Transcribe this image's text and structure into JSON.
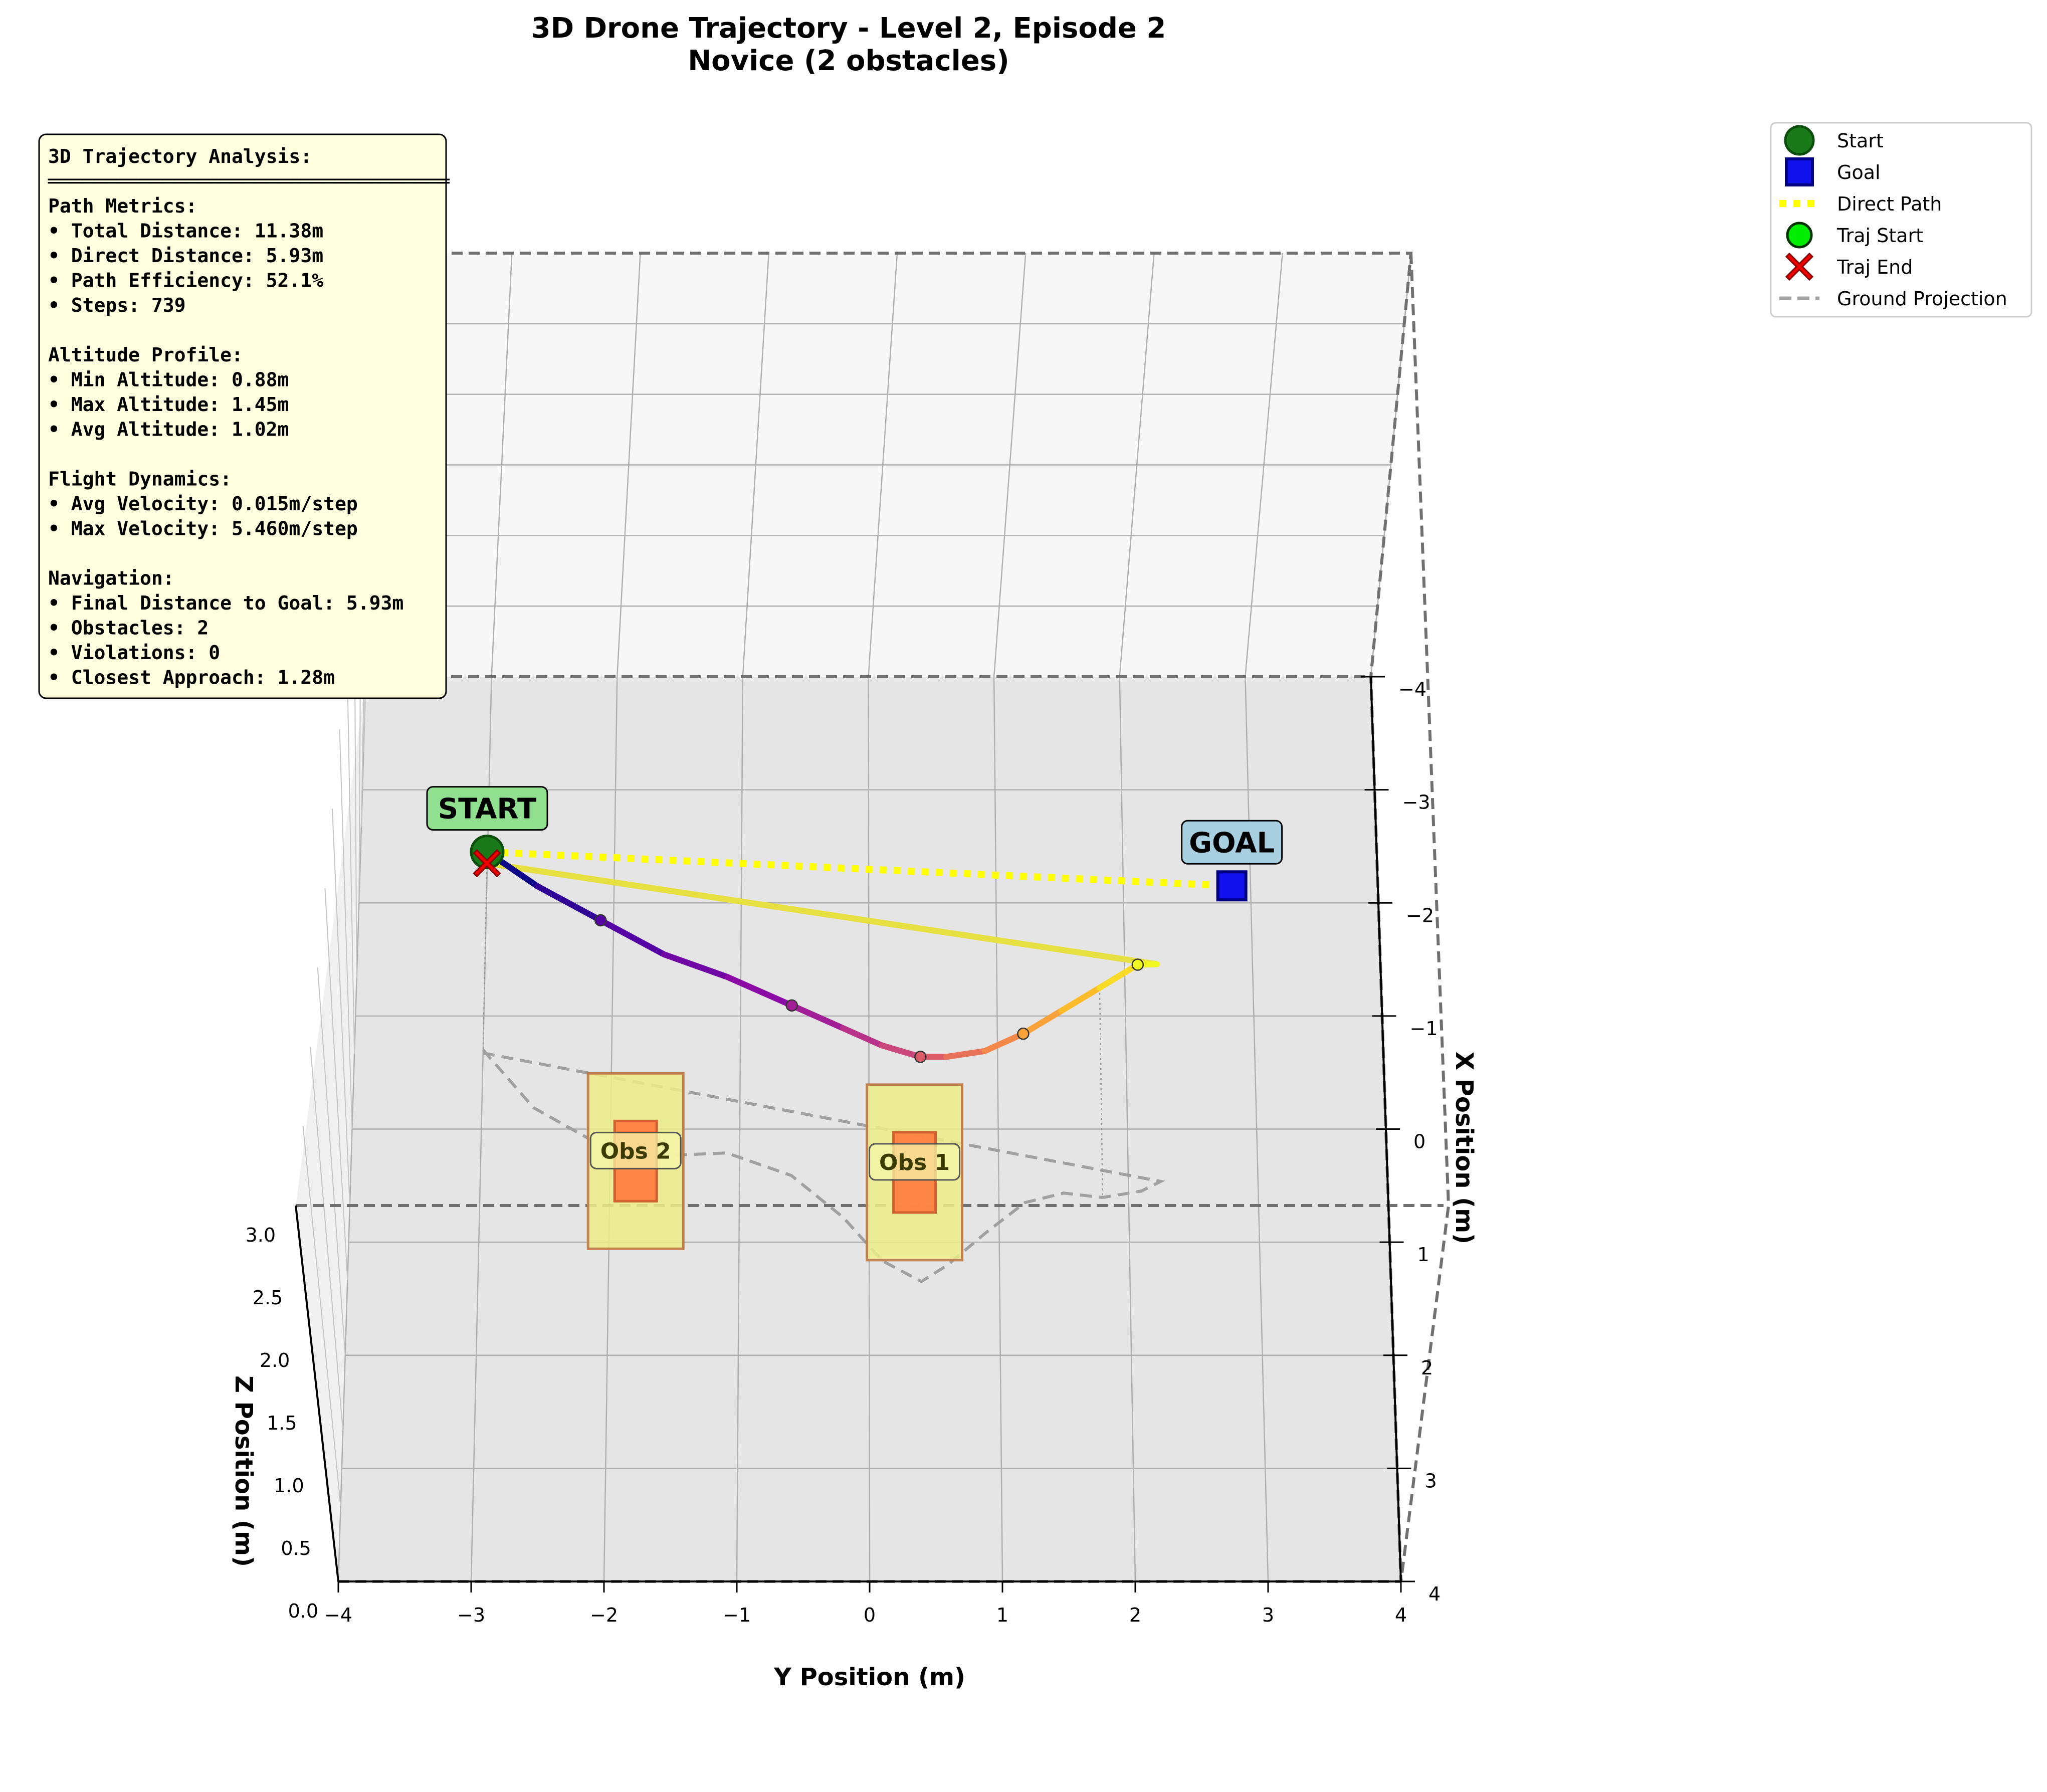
{
  "chart_data": {
    "type": "line",
    "projection": "3d",
    "title": "3D Drone Trajectory - Level 2, Episode 2",
    "subtitle": "Novice (2 obstacles)",
    "xlabel": "X Position (m)",
    "ylabel": "Y Position (m)",
    "zlabel": "Z Position (m)",
    "xlim": [
      -4,
      4
    ],
    "ylim": [
      -4,
      4
    ],
    "zlim": [
      0,
      3
    ],
    "x_ticks": [
      "−4",
      "−3",
      "−2",
      "−1",
      "0",
      "1",
      "2",
      "3",
      "4"
    ],
    "y_ticks": [
      "−4",
      "−3",
      "−2",
      "−1",
      "0",
      "1",
      "2",
      "3",
      "4"
    ],
    "z_ticks": [
      "0.0",
      "0.5",
      "1.0",
      "1.5",
      "2.0",
      "2.5",
      "3.0"
    ],
    "grid": true,
    "colormap": "plasma",
    "start": {
      "label": "START",
      "x": -2.3,
      "y": -3.0,
      "z": 1.0
    },
    "goal": {
      "label": "GOAL",
      "x": -2.0,
      "y": 2.85,
      "z": 1.0
    },
    "trajectory": {
      "x": [
        -2.3,
        -2.0,
        -1.7,
        -1.4,
        -1.2,
        -0.95,
        -0.75,
        -0.6,
        -0.5,
        -0.5,
        -0.55,
        -0.7,
        -0.9,
        -1.1,
        -1.3,
        -1.3,
        -2.2
      ],
      "y": [
        -3.0,
        -2.6,
        -2.1,
        -1.6,
        -1.1,
        -0.6,
        -0.2,
        0.1,
        0.4,
        0.6,
        0.9,
        1.2,
        1.5,
        1.8,
        2.1,
        2.25,
        -3.0
      ],
      "z": [
        1.0,
        0.98,
        0.97,
        0.96,
        0.95,
        0.95,
        0.94,
        0.93,
        0.92,
        0.92,
        0.93,
        0.95,
        0.97,
        0.99,
        1.02,
        1.05,
        1.0
      ]
    },
    "obstacles": [
      {
        "label": "Obs 1",
        "x": 0.6,
        "y": 0.35,
        "z": 1.0
      },
      {
        "label": "Obs 2",
        "x": 0.5,
        "y": -1.8,
        "z": 1.0
      }
    ],
    "legend": {
      "placement": "upper-right-outside",
      "entries": [
        "Start",
        "Goal",
        "Direct Path",
        "Traj Start",
        "Traj End",
        "Ground Projection"
      ]
    },
    "colors": {
      "start": "#1a7a1a",
      "goal": "#1111ee",
      "direct_path": "#ffff00",
      "traj_start": "#00ee00",
      "traj_end": "#ee0000",
      "ground_projection": "#a0a0a0",
      "return_segment": "#e6e040",
      "obstacle_outer": "#eded8a",
      "obstacle_inner": "#ff7a3d",
      "stats_box": "#ffffe0",
      "start_label_bg": "#90e090",
      "goal_label_bg": "#a8d0e0"
    },
    "stats_lines": [
      "3D Trajectory Analysis:",
      "═══════════════════════════════════",
      "Path Metrics:",
      "• Total Distance: 11.38m",
      "• Direct Distance: 5.93m",
      "• Path Efficiency: 52.1%",
      "• Steps: 739",
      "",
      "Altitude Profile:",
      "• Min Altitude: 0.88m",
      "• Max Altitude: 1.45m",
      "• Avg Altitude: 1.02m",
      "",
      "Flight Dynamics:",
      "• Avg Velocity: 0.015m/step",
      "• Max Velocity: 5.460m/step",
      "",
      "Navigation:",
      "• Final Distance to Goal: 5.93m",
      "• Obstacles: 2",
      "• Violations: 0",
      "• Closest Approach: 1.28m"
    ]
  }
}
